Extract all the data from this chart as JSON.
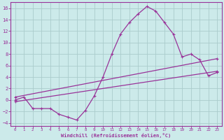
{
  "xlabel": "Windchill (Refroidissement éolien,°C)",
  "background_color": "#cceaea",
  "grid_color": "#aacccc",
  "line_color": "#993399",
  "xlim": [
    -0.5,
    23.5
  ],
  "ylim": [
    -4.5,
    17.0
  ],
  "xticks": [
    0,
    1,
    2,
    3,
    4,
    5,
    6,
    7,
    8,
    9,
    10,
    11,
    12,
    13,
    14,
    15,
    16,
    17,
    18,
    19,
    20,
    21,
    22,
    23
  ],
  "yticks": [
    -4,
    -2,
    0,
    2,
    4,
    6,
    8,
    10,
    12,
    14,
    16
  ],
  "curve1_x": [
    0,
    1,
    2,
    3,
    4,
    5,
    6,
    7,
    8,
    9,
    10,
    11,
    12,
    13,
    14,
    15,
    16,
    17,
    18,
    19,
    20,
    21,
    22,
    23
  ],
  "curve1_y": [
    0.0,
    0.5,
    -1.5,
    -1.5,
    -1.5,
    -2.5,
    -3.0,
    -3.5,
    -1.8,
    0.7,
    4.0,
    8.0,
    11.5,
    13.5,
    15.0,
    16.3,
    15.5,
    13.5,
    11.5,
    7.5,
    8.0,
    7.0,
    4.2,
    4.8
  ],
  "curve2_x": [
    0,
    23
  ],
  "curve2_y": [
    -0.3,
    5.0
  ],
  "curve3_x": [
    0,
    23
  ],
  "curve3_y": [
    0.5,
    7.2
  ]
}
